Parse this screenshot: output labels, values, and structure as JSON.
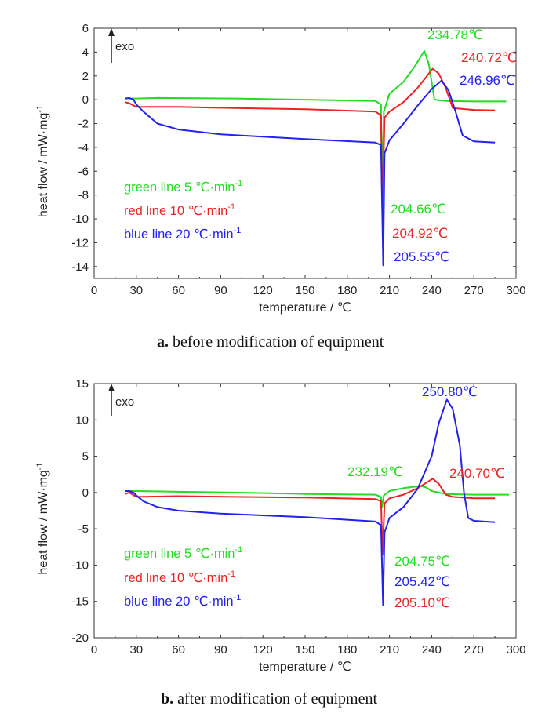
{
  "chart_data": [
    {
      "type": "line",
      "caption_letter": "a.",
      "caption_text": "before modification of equipment",
      "xlabel": "temperature / ℃",
      "ylabel": "heat flow / mW·mg",
      "ylabel_sup": "-1",
      "exo_label": "exo",
      "xlim": [
        0,
        300
      ],
      "ylim": [
        -15,
        6
      ],
      "xticks": [
        0,
        30,
        60,
        90,
        120,
        150,
        180,
        210,
        240,
        270,
        300
      ],
      "yticks": [
        -14,
        -12,
        -10,
        -8,
        -6,
        -4,
        -2,
        0,
        2,
        4,
        6
      ],
      "grid": false,
      "legend": [
        {
          "text": "green line 5 ℃·min",
          "sup": "-1",
          "color": "#22dd22"
        },
        {
          "text": "red line 10 ℃·min",
          "sup": "-1",
          "color": "#ee2222"
        },
        {
          "text": "blue line 20 ℃·min",
          "sup": "-1",
          "color": "#2222ee"
        }
      ],
      "series": [
        {
          "color": "#22dd22",
          "x": [
            22,
            25,
            30,
            45,
            100,
            150,
            200,
            204,
            204.66,
            206,
            210,
            220,
            228,
            234.78,
            238,
            240,
            242,
            250,
            270,
            293
          ],
          "y": [
            0.1,
            0.1,
            0.1,
            0.15,
            0.1,
            0.0,
            -0.1,
            -0.4,
            -8.0,
            -1.0,
            0.5,
            1.5,
            2.8,
            4.1,
            3.0,
            1.5,
            0.0,
            -0.1,
            -0.15,
            -0.15
          ]
        },
        {
          "color": "#ee2222",
          "x": [
            22,
            25,
            30,
            60,
            100,
            150,
            200,
            204,
            204.92,
            206.5,
            210,
            215,
            220,
            230,
            240.72,
            245,
            250,
            255,
            270,
            285
          ],
          "y": [
            -0.2,
            -0.3,
            -0.6,
            -0.6,
            -0.7,
            -0.8,
            -1.0,
            -1.3,
            -9.4,
            -1.5,
            -1.0,
            -0.6,
            -0.2,
            1.0,
            2.6,
            2.2,
            1.0,
            -0.7,
            -0.85,
            -0.9
          ]
        },
        {
          "color": "#2222ee",
          "x": [
            22,
            25,
            28,
            30,
            35,
            45,
            60,
            90,
            150,
            200,
            204,
            205.55,
            206.5,
            210,
            220,
            230,
            240,
            246.96,
            252,
            257,
            262,
            270,
            285
          ],
          "y": [
            0.1,
            0.15,
            0.0,
            -0.4,
            -1.0,
            -2.0,
            -2.5,
            -2.9,
            -3.3,
            -3.6,
            -3.8,
            -13.9,
            -4.5,
            -3.4,
            -2.0,
            -0.5,
            0.9,
            1.6,
            0.8,
            -1.0,
            -3.0,
            -3.5,
            -3.6
          ]
        }
      ],
      "annotations": [
        {
          "text": "234.78℃",
          "color": "#22dd22",
          "x": 234.78,
          "y": 4.1
        },
        {
          "text": "240.72℃",
          "color": "#ee2222",
          "x": 240.72,
          "y": 2.6
        },
        {
          "text": "246.96℃",
          "color": "#2222ee",
          "x": 246.96,
          "y": 1.6
        },
        {
          "text": "204.66℃",
          "color": "#22dd22",
          "x": 204.66,
          "y": -8.0
        },
        {
          "text": "204.92℃",
          "color": "#ee2222",
          "x": 204.92,
          "y": -9.4
        },
        {
          "text": "205.55℃",
          "color": "#2222ee",
          "x": 205.55,
          "y": -13.9
        }
      ]
    },
    {
      "type": "line",
      "caption_letter": "b.",
      "caption_text": "after modification of equipment",
      "xlabel": "temperature / ℃",
      "ylabel": "heat flow / mW·mg",
      "ylabel_sup": "-1",
      "exo_label": "exo",
      "xlim": [
        0,
        300
      ],
      "ylim": [
        -20,
        15
      ],
      "xticks": [
        0,
        30,
        60,
        90,
        120,
        150,
        180,
        210,
        240,
        270,
        300
      ],
      "yticks": [
        -20,
        -15,
        -10,
        -5,
        0,
        5,
        10,
        15
      ],
      "grid": false,
      "legend": [
        {
          "text": "green line 5 ℃·min",
          "sup": "-1",
          "color": "#22dd22"
        },
        {
          "text": "red line 10 ℃·min",
          "sup": "-1",
          "color": "#ee2222"
        },
        {
          "text": "blue line 20 ℃·min",
          "sup": "-1",
          "color": "#2222ee"
        }
      ],
      "series": [
        {
          "color": "#22dd22",
          "x": [
            22,
            25,
            30,
            60,
            100,
            150,
            200,
            204,
            204.75,
            206,
            210,
            220,
            232.19,
            236,
            240,
            250,
            270,
            295
          ],
          "y": [
            0.2,
            0.2,
            0.2,
            0.1,
            0.0,
            -0.2,
            -0.3,
            -0.6,
            -2.0,
            -0.4,
            0.2,
            0.6,
            0.9,
            0.7,
            0.2,
            -0.2,
            -0.3,
            -0.3
          ]
        },
        {
          "color": "#ee2222",
          "x": [
            22,
            25,
            30,
            60,
            100,
            150,
            200,
            204,
            205.1,
            206.5,
            210,
            220,
            230,
            240.7,
            245,
            250,
            255,
            270,
            285
          ],
          "y": [
            -0.2,
            0.0,
            -0.6,
            -0.5,
            -0.6,
            -0.7,
            -0.9,
            -1.2,
            -8.5,
            -1.5,
            -0.8,
            -0.3,
            0.6,
            1.9,
            1.2,
            -0.3,
            -0.6,
            -0.8,
            -0.8
          ]
        },
        {
          "color": "#2222ee",
          "x": [
            22,
            25,
            28,
            30,
            35,
            45,
            60,
            90,
            150,
            200,
            204,
            205.42,
            206.5,
            210,
            220,
            230,
            240,
            245,
            250.8,
            255,
            260,
            263,
            266,
            270,
            285
          ],
          "y": [
            0.2,
            0.2,
            0.0,
            -0.4,
            -1.2,
            -2.0,
            -2.5,
            -2.9,
            -3.4,
            -4.0,
            -4.5,
            -15.5,
            -5.5,
            -3.5,
            -2.0,
            0.5,
            5.0,
            9.5,
            12.8,
            11.5,
            6.5,
            0.0,
            -3.5,
            -3.9,
            -4.1
          ]
        }
      ],
      "annotations": [
        {
          "text": "250.80℃",
          "color": "#2222ee",
          "x": 250.8,
          "y": 12.8
        },
        {
          "text": "232.19℃",
          "color": "#22dd22",
          "x": 232.19,
          "y": 0.9
        },
        {
          "text": "240.70℃",
          "color": "#ee2222",
          "x": 240.7,
          "y": 1.9
        },
        {
          "text": "204.75℃",
          "color": "#22dd22",
          "x": 204.75,
          "y": -2.0
        },
        {
          "text": "205.42℃",
          "color": "#2222ee",
          "x": 205.42,
          "y": -15.5
        },
        {
          "text": "205.10℃",
          "color": "#ee2222",
          "x": 205.1,
          "y": -8.5
        }
      ]
    }
  ]
}
